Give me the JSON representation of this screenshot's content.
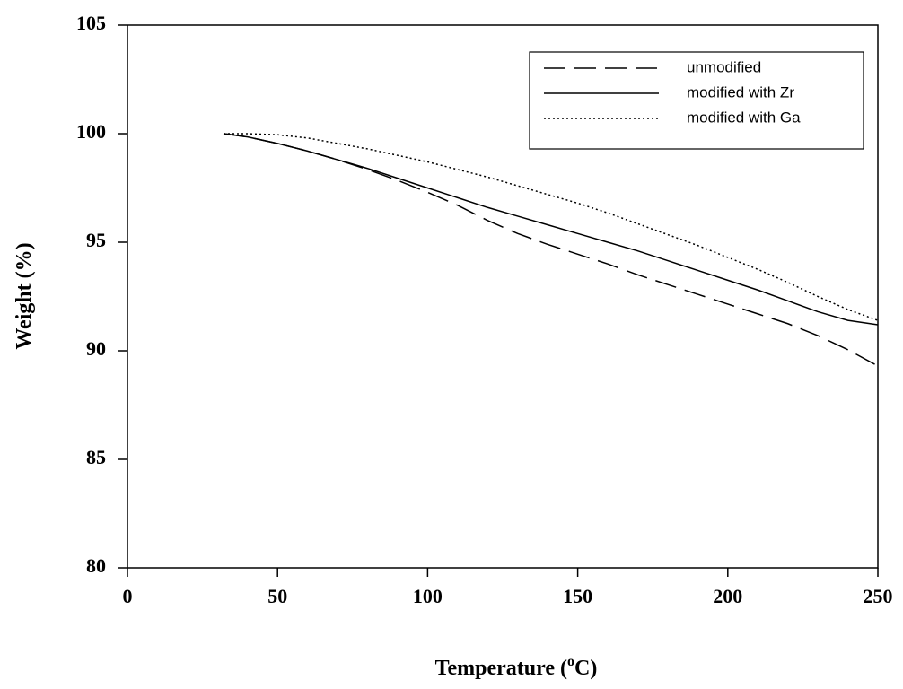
{
  "chart_data": {
    "type": "line",
    "x_label": [
      "Temperature (",
      "o",
      "C)"
    ],
    "y_label": "Weight (%)",
    "x": [
      32,
      40,
      50,
      60,
      70,
      80,
      90,
      100,
      110,
      120,
      130,
      140,
      150,
      160,
      170,
      180,
      190,
      200,
      210,
      220,
      230,
      240,
      250
    ],
    "series": [
      {
        "name": "unmodified",
        "color": "#000000",
        "dash": "dashed",
        "values": [
          100,
          99.85,
          99.55,
          99.2,
          98.8,
          98.35,
          97.85,
          97.3,
          96.7,
          96.0,
          95.4,
          94.9,
          94.45,
          94.0,
          93.5,
          93.05,
          92.6,
          92.15,
          91.7,
          91.25,
          90.7,
          90.05,
          89.3
        ]
      },
      {
        "name": "modified with Zr",
        "color": "#000000",
        "dash": "solid",
        "values": [
          100,
          99.85,
          99.55,
          99.2,
          98.8,
          98.4,
          97.95,
          97.5,
          97.05,
          96.6,
          96.2,
          95.8,
          95.4,
          95.0,
          94.6,
          94.15,
          93.7,
          93.25,
          92.8,
          92.3,
          91.8,
          91.4,
          91.2
        ]
      },
      {
        "name": "modified with Ga",
        "color": "#000000",
        "dash": "dotted",
        "values": [
          100,
          100,
          99.95,
          99.8,
          99.55,
          99.3,
          99.0,
          98.7,
          98.35,
          98.0,
          97.6,
          97.2,
          96.8,
          96.35,
          95.85,
          95.35,
          94.85,
          94.3,
          93.75,
          93.15,
          92.5,
          91.9,
          91.4
        ]
      }
    ],
    "xlim": [
      0,
      250
    ],
    "xticks": [
      0,
      50,
      100,
      150,
      200,
      250
    ],
    "ylim": [
      80,
      105
    ],
    "yticks": [
      80,
      85,
      90,
      95,
      100,
      105
    ],
    "legend": "upper right"
  }
}
